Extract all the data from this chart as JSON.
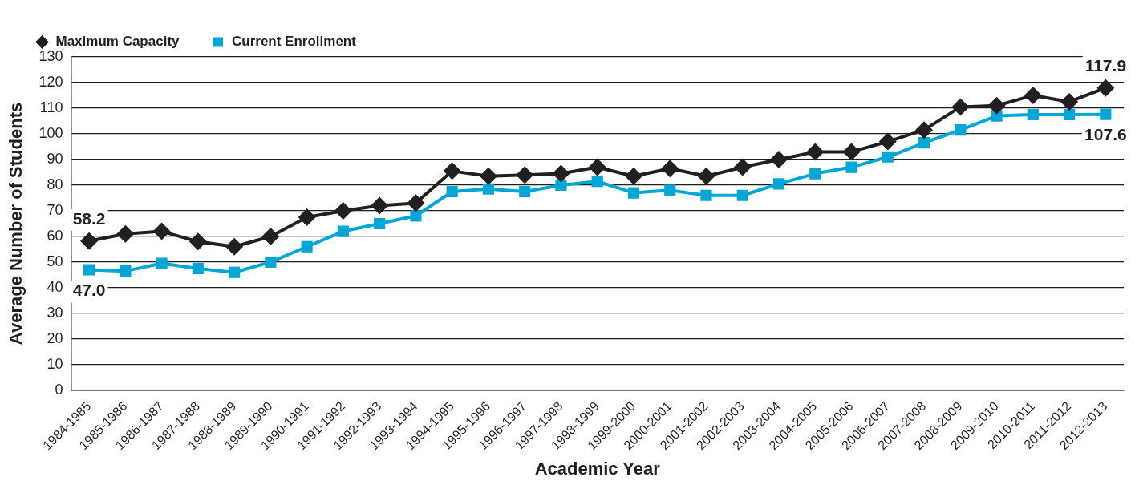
{
  "chart_data": {
    "type": "line",
    "xlabel": "Academic Year",
    "ylabel": "Average Number of Students",
    "categories": [
      "1984-1985",
      "1985-1986",
      "1986-1987",
      "1987-1988",
      "1988-1989",
      "1989-1990",
      "1990-1991",
      "1991-1992",
      "1992-1993",
      "1993-1994",
      "1994-1995",
      "1995-1996",
      "1996-1997",
      "1997-1998",
      "1998-1999",
      "1999-2000",
      "2000-2001",
      "2001-2002",
      "2002-2003",
      "2003-2004",
      "2004-2005",
      "2005-2006",
      "2006-2007",
      "2007-2008",
      "2008-2009",
      "2009-2010",
      "2010-2011",
      "2011-2012",
      "2012-2013"
    ],
    "series": [
      {
        "name": "Maximum Capacity",
        "color": "#231f20",
        "marker": "diamond",
        "values": [
          58.2,
          61,
          62,
          58,
          56,
          60,
          67.5,
          70,
          72,
          73,
          85.5,
          83.5,
          84,
          84.5,
          87,
          83.5,
          86.5,
          83.5,
          87,
          90,
          93,
          93,
          97,
          101.5,
          110.5,
          111,
          115,
          112.5,
          117.9
        ],
        "value_labels": [
          "58.2",
          null,
          null,
          null,
          null,
          null,
          null,
          null,
          null,
          null,
          null,
          null,
          null,
          null,
          null,
          null,
          null,
          null,
          null,
          null,
          null,
          null,
          null,
          null,
          null,
          null,
          null,
          null,
          "117.9"
        ]
      },
      {
        "name": "Current Enrollment",
        "color": "#00a6d6",
        "marker": "square",
        "values": [
          47.0,
          46.5,
          49.5,
          47.5,
          46,
          50,
          56,
          62,
          65,
          68,
          77.5,
          78.5,
          77.5,
          80,
          81.5,
          77,
          78,
          76,
          76,
          80.5,
          84.5,
          87,
          91,
          96.5,
          101.5,
          107,
          107.5,
          107.5,
          107.6
        ],
        "value_labels": [
          "47.0",
          null,
          null,
          null,
          null,
          null,
          null,
          null,
          null,
          null,
          null,
          null,
          null,
          null,
          null,
          null,
          null,
          null,
          null,
          null,
          null,
          null,
          null,
          null,
          null,
          null,
          null,
          null,
          "107.6"
        ]
      }
    ],
    "ylim": [
      0,
      130
    ],
    "yticks": [
      0,
      10,
      20,
      30,
      40,
      50,
      60,
      70,
      80,
      90,
      100,
      110,
      120,
      130
    ],
    "grid": "y",
    "legend": "top left",
    "line_style": "solid"
  }
}
